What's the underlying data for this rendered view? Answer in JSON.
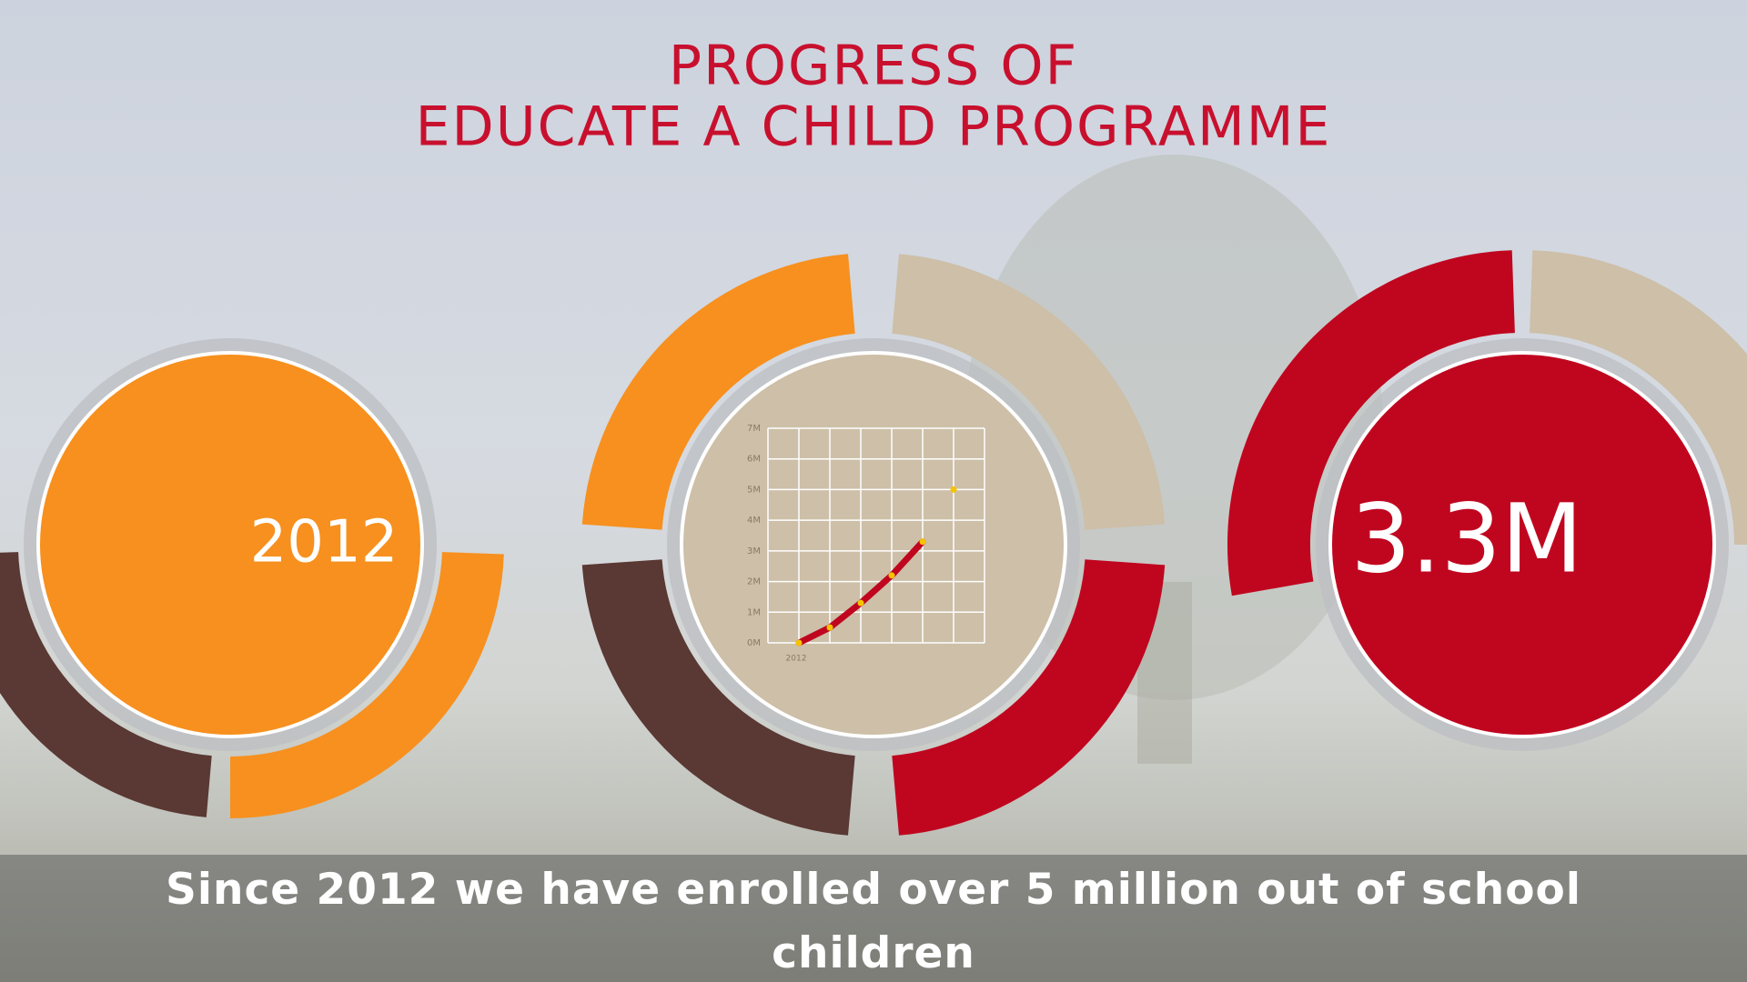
{
  "title": {
    "lines": [
      "PROGRESS OF",
      "EDUCATE A CHILD PROGRAMME"
    ]
  },
  "panels": {
    "left": "2012",
    "right": "3.3M"
  },
  "chart_data": {
    "type": "line",
    "categories": [
      "2012",
      null,
      null,
      null,
      null,
      null
    ],
    "series": [
      {
        "color": "#c0061f",
        "point_color": "#f5c400",
        "values": [
          0,
          0.5,
          1.3,
          2.2,
          3.3,
          null
        ]
      },
      {
        "color": "#f5c400",
        "point_color": "#f5c400",
        "values": [
          null,
          null,
          null,
          null,
          null,
          5
        ]
      }
    ],
    "ylim": [
      0,
      7
    ],
    "yticks": [
      {
        "value": 0,
        "label": "0M"
      },
      {
        "value": 1,
        "label": "1M"
      },
      {
        "value": 2,
        "label": "2M"
      },
      {
        "value": 3,
        "label": "3M"
      },
      {
        "value": 4,
        "label": "4M"
      },
      {
        "value": 5,
        "label": "5M"
      },
      {
        "value": 6,
        "label": "6M"
      },
      {
        "value": 7,
        "label": "7M"
      }
    ],
    "grid": true
  },
  "caption": "Since 2012 we have enrolled over 5 million out of school children"
}
